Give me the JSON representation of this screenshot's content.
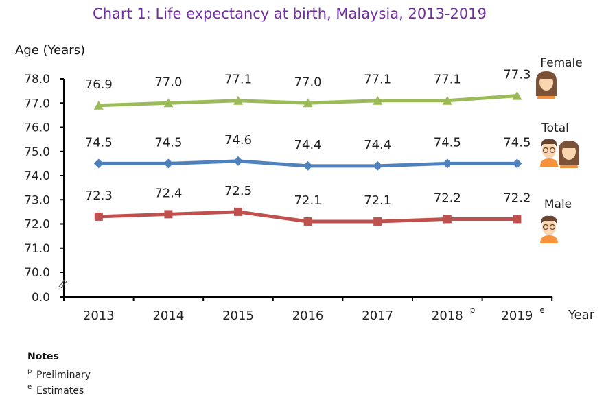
{
  "chart_data": {
    "type": "line",
    "title": "Chart 1: Life expectancy at birth, Malaysia, 2013-2019",
    "ylabel": "Age (Years)",
    "xlabel": "Year",
    "categories": [
      "2013",
      "2014",
      "2015",
      "2016",
      "2017",
      "2018",
      "2019"
    ],
    "category_superscripts": [
      "",
      "",
      "",
      "",
      "",
      "p",
      "e"
    ],
    "yticks": [
      "0.0",
      "70.0",
      "71.0",
      "72.0",
      "73.0",
      "74.0",
      "75.0",
      "76.0",
      "77.0",
      "78.0"
    ],
    "ylim": [
      70,
      78
    ],
    "axis_break": true,
    "grid": false,
    "series": [
      {
        "name": "Female",
        "values": [
          76.9,
          77.0,
          77.1,
          77.0,
          77.1,
          77.1,
          77.3
        ],
        "labels": [
          "76.9",
          "77.0",
          "77.1",
          "77.0",
          "77.1",
          "77.1",
          "77.3"
        ],
        "color": "#9BBB59",
        "marker": "triangle"
      },
      {
        "name": "Total",
        "values": [
          74.5,
          74.5,
          74.6,
          74.4,
          74.4,
          74.5,
          74.5
        ],
        "labels": [
          "74.5",
          "74.5",
          "74.6",
          "74.4",
          "74.4",
          "74.5",
          "74.5"
        ],
        "color": "#4F81BD",
        "marker": "diamond"
      },
      {
        "name": "Male",
        "values": [
          72.3,
          72.4,
          72.5,
          72.1,
          72.1,
          72.2,
          72.2
        ],
        "labels": [
          "72.3",
          "72.4",
          "72.5",
          "72.1",
          "72.1",
          "72.2",
          "72.2"
        ],
        "color": "#C0504D",
        "marker": "square"
      }
    ],
    "legend_placement": "right, with person icons"
  },
  "title_color": "#7030A0",
  "notes": {
    "heading": "Notes",
    "items": [
      {
        "mark": "p",
        "text": "Preliminary"
      },
      {
        "mark": "e",
        "text": "Estimates"
      }
    ]
  }
}
